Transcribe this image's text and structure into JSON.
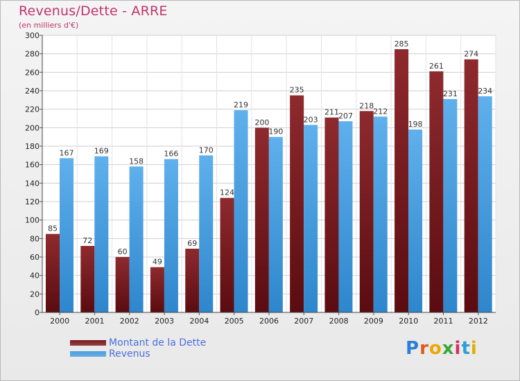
{
  "chart_data": {
    "type": "bar",
    "title": "Revenus/Dette - ARRE",
    "subtitle": "(en milliers d'€)",
    "categories": [
      "2000",
      "2001",
      "2002",
      "2003",
      "2004",
      "2005",
      "2006",
      "2007",
      "2008",
      "2009",
      "2010",
      "2011",
      "2012"
    ],
    "series": [
      {
        "name": "Montant de la Dette",
        "values": [
          85,
          72,
          60,
          49,
          69,
          124,
          200,
          235,
          211,
          218,
          285,
          261,
          274
        ],
        "color": "#7a1a1e"
      },
      {
        "name": "Revenus",
        "values": [
          167,
          169,
          158,
          166,
          170,
          219,
          190,
          203,
          207,
          212,
          198,
          231,
          234
        ],
        "color": "#4a9fe0"
      }
    ],
    "ylim": [
      0,
      300
    ],
    "ytick_step": 20,
    "grid": true,
    "legend": "bottom-left"
  },
  "legend": {
    "items": [
      {
        "label": "Montant de la Dette",
        "color": "#7a1a1e"
      },
      {
        "label": "Revenus",
        "color": "#4a9fe0"
      }
    ]
  },
  "brand": {
    "text": "Proxiti"
  }
}
